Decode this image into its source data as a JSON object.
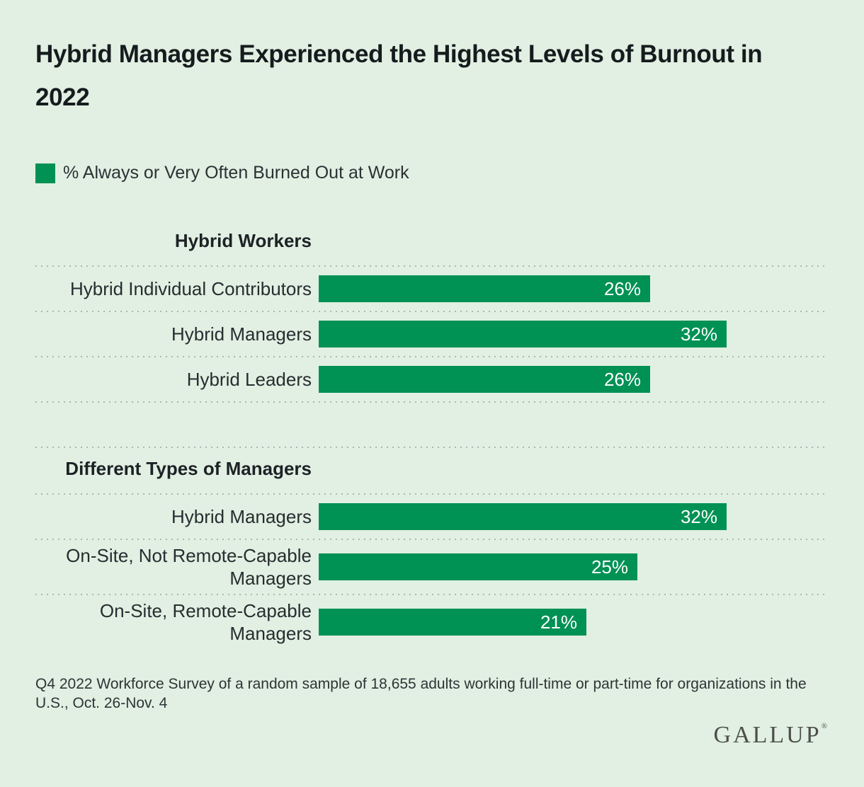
{
  "page": {
    "background_color": "#e1f0e2",
    "accent_green": "#009154"
  },
  "header": {
    "title": "Hybrid Managers Experienced the Highest Levels of Burnout in 2022"
  },
  "legend": {
    "swatch_color": "#009154",
    "label": "% Always or Very Often Burned Out at Work"
  },
  "chart_data": {
    "type": "bar",
    "orientation": "horizontal",
    "unit": "%",
    "xlim": [
      0,
      40
    ],
    "grid": "dotted-row-separators",
    "bar_color": "#009154",
    "value_label_position": "inside-right",
    "sections": [
      {
        "header": "Hybrid Workers",
        "rows": [
          {
            "label": "Hybrid Individual Contributors",
            "value": 26,
            "display": "26%"
          },
          {
            "label": "Hybrid Managers",
            "value": 32,
            "display": "32%"
          },
          {
            "label": "Hybrid Leaders",
            "value": 26,
            "display": "26%"
          }
        ]
      },
      {
        "header": "Different Types of Managers",
        "rows": [
          {
            "label": "Hybrid Managers",
            "value": 32,
            "display": "32%"
          },
          {
            "label": "On-Site, Not Remote-Capable Managers",
            "value": 25,
            "display": "25%"
          },
          {
            "label": "On-Site, Remote-Capable Managers",
            "value": 21,
            "display": "21%"
          }
        ]
      }
    ]
  },
  "footnote": "Q4 2022 Workforce Survey of a random sample of 18,655 adults working full-time or part-time for organizations in the U.S., Oct. 26-Nov. 4",
  "branding": {
    "logo_text": "GALLUP",
    "registered_mark": "®"
  }
}
